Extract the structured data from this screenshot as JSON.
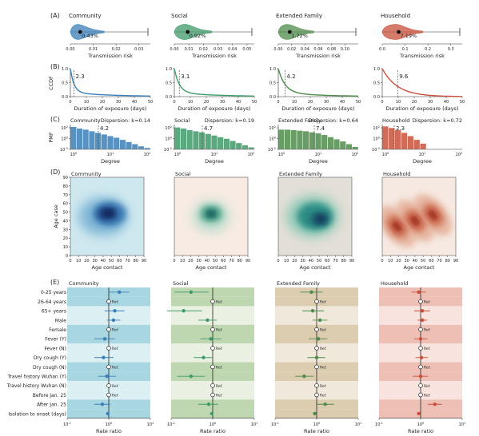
{
  "figure": {
    "panel_letters": [
      "(A)",
      "(B)",
      "(C)",
      "(D)",
      "(E)"
    ],
    "setting_titles": [
      "Community",
      "Social",
      "Extended Family",
      "Household"
    ],
    "colors": {
      "community": "#3a7fb8",
      "social": "#3f9a6a",
      "extended_family": "#4e8c4a",
      "household": "#c9503a"
    }
  },
  "chart_data": [
    {
      "type": "violin",
      "panel": "A",
      "xlabel": "Transmission risk",
      "settings": [
        {
          "name": "Community",
          "mean_label": "0.43%",
          "mean": 0.0043,
          "xlim": [
            0,
            0.035
          ],
          "ticks": [
            "0.00",
            "0.01",
            "0.02",
            "0.03"
          ],
          "tick_values": [
            0,
            0.01,
            0.02,
            0.03
          ]
        },
        {
          "name": "Social",
          "mean_label": "0.92%",
          "mean": 0.0092,
          "xlim": [
            0,
            0.055
          ],
          "ticks": [
            "0.00",
            "0.01",
            "0.02",
            "0.03",
            "0.04",
            "0.05"
          ],
          "tick_values": [
            0,
            0.01,
            0.02,
            0.03,
            0.04,
            0.05
          ]
        },
        {
          "name": "Extended Family",
          "mean_label": "1.72%",
          "mean": 0.0172,
          "xlim": [
            0,
            0.12
          ],
          "ticks": [
            "0.00",
            "0.02",
            "0.04",
            "0.06",
            "0.08",
            "0.10"
          ],
          "tick_values": [
            0,
            0.02,
            0.04,
            0.06,
            0.08,
            0.1
          ]
        },
        {
          "name": "Household",
          "mean_label": "7.19%",
          "mean": 0.0719,
          "xlim": [
            0,
            0.35
          ],
          "ticks": [
            "0.0",
            "0.1",
            "0.2",
            "0.3"
          ],
          "tick_values": [
            0,
            0.1,
            0.2,
            0.3
          ]
        }
      ]
    },
    {
      "type": "line",
      "panel": "B",
      "xlabel": "Duration of exposure (days)",
      "ylabel": "CCDF",
      "xlim": [
        0,
        50
      ],
      "ylim": [
        0,
        1.0
      ],
      "xticks": [
        0,
        10,
        20,
        30,
        40,
        50
      ],
      "yticks": [
        "0.0",
        "0.5",
        "1.0"
      ],
      "series": [
        {
          "setting": "Community",
          "mean_label": "2.3",
          "mean": 2.3
        },
        {
          "setting": "Social",
          "mean_label": "3.1",
          "mean": 3.1
        },
        {
          "setting": "Extended Family",
          "mean_label": "4.2",
          "mean": 4.2
        },
        {
          "setting": "Household",
          "mean_label": "9.6",
          "mean": 9.6
        }
      ]
    },
    {
      "type": "bar",
      "panel": "C",
      "xlabel": "Degree",
      "ylabel": "PMF",
      "xticks": [
        "10^0",
        "10^1",
        "10^2"
      ],
      "yticks": [
        "10^-2",
        "10^0",
        "10^2"
      ],
      "series": [
        {
          "setting": "Community",
          "mean_label": "4.2",
          "dispersion_label": "Dispersion: k=0.14",
          "heights": [
            2.2,
            1.9,
            1.7,
            1.4,
            1.1,
            0.8,
            0.5,
            0.2,
            -0.2,
            -0.6,
            -1.0,
            -1.4,
            -1.7
          ]
        },
        {
          "setting": "Social",
          "mean_label": "4.7",
          "dispersion_label": "Dispersion: k=0.19",
          "heights": [
            2.1,
            1.9,
            1.6,
            1.4,
            1.2,
            0.9,
            0.6,
            0.3,
            0.0,
            -0.4,
            -0.8,
            -1.2,
            -1.6
          ]
        },
        {
          "setting": "Extended Family",
          "mean_label": "7.4",
          "dispersion_label": "Dispersion: k=0.64",
          "heights": [
            1.7,
            1.7,
            1.6,
            1.5,
            1.4,
            1.2,
            1.0,
            0.7,
            0.3,
            -0.1,
            -0.5,
            -1.0,
            -1.5
          ]
        },
        {
          "setting": "Household",
          "mean_label": "2.3",
          "dispersion_label": "Dispersion: k=0.72",
          "heights": [
            2.3,
            2.0,
            1.6,
            1.1,
            0.5,
            -0.2,
            -0.9
          ]
        }
      ]
    },
    {
      "type": "heatmap",
      "panel": "D",
      "xlabel": "Age contact",
      "ylabel": "Age case",
      "xlim": [
        0,
        90
      ],
      "ylim": [
        0,
        90
      ],
      "xticks": [
        0,
        10,
        20,
        30,
        40,
        50,
        60,
        70,
        80,
        90
      ],
      "yticks": [
        0,
        10,
        20,
        30,
        40,
        50,
        60,
        70,
        80,
        90
      ],
      "settings": [
        "Community",
        "Social",
        "Extended Family",
        "Household"
      ]
    },
    {
      "type": "forest",
      "panel": "E",
      "xlabel": "Rate ratio",
      "xscale": "log",
      "xticks": [
        "10^-1",
        "10^0",
        "10^1"
      ],
      "reference_label": "Ref.",
      "rows": [
        "0-25 years",
        "26-64 years",
        "65+ years",
        "Male",
        "Female",
        "Fever (Y)",
        "Fever (N)",
        "Dry cough (Y)",
        "Dry cough (N)",
        "Travel history Wuhan (Y)",
        "Travel history Wuhan (N)",
        "Before Jan. 25",
        "After Jan. 25",
        "Isolation to onset (days)"
      ],
      "reference_rows": [
        1,
        4,
        6,
        8,
        10,
        11
      ],
      "settings": [
        {
          "name": "Community",
          "estimates": [
            {
              "row": 0,
              "rr": 1.8,
              "lo": 1.0,
              "hi": 3.1
            },
            {
              "row": 2,
              "rr": 1.4,
              "lo": 0.8,
              "hi": 2.4
            },
            {
              "row": 3,
              "rr": 1.3,
              "lo": 0.9,
              "hi": 1.9
            },
            {
              "row": 5,
              "rr": 0.8,
              "lo": 0.45,
              "hi": 1.4
            },
            {
              "row": 7,
              "rr": 0.75,
              "lo": 0.45,
              "hi": 1.3
            },
            {
              "row": 9,
              "rr": 0.9,
              "lo": 0.55,
              "hi": 1.5
            },
            {
              "row": 12,
              "rr": 0.7,
              "lo": 0.45,
              "hi": 1.1
            },
            {
              "row": 13,
              "rr": 0.95,
              "lo": 0.88,
              "hi": 1.03
            }
          ]
        },
        {
          "name": "Social",
          "estimates": [
            {
              "row": 0,
              "rr": 0.3,
              "lo": 0.12,
              "hi": 0.8
            },
            {
              "row": 2,
              "rr": 0.2,
              "lo": 0.08,
              "hi": 0.55
            },
            {
              "row": 3,
              "rr": 0.75,
              "lo": 0.45,
              "hi": 1.25
            },
            {
              "row": 5,
              "rr": 0.9,
              "lo": 0.5,
              "hi": 1.6
            },
            {
              "row": 7,
              "rr": 0.6,
              "lo": 0.35,
              "hi": 1.0
            },
            {
              "row": 9,
              "rr": 0.3,
              "lo": 0.14,
              "hi": 0.65
            },
            {
              "row": 12,
              "rr": 0.8,
              "lo": 0.45,
              "hi": 1.35
            },
            {
              "row": 13,
              "rr": 0.95,
              "lo": 0.88,
              "hi": 1.03
            }
          ]
        },
        {
          "name": "Extended Family",
          "estimates": [
            {
              "row": 0,
              "rr": 0.75,
              "lo": 0.4,
              "hi": 1.4
            },
            {
              "row": 2,
              "rr": 0.8,
              "lo": 0.45,
              "hi": 1.5
            },
            {
              "row": 3,
              "rr": 1.2,
              "lo": 0.8,
              "hi": 1.8
            },
            {
              "row": 5,
              "rr": 1.1,
              "lo": 0.65,
              "hi": 1.8
            },
            {
              "row": 7,
              "rr": 1.0,
              "lo": 0.6,
              "hi": 1.6
            },
            {
              "row": 9,
              "rr": 0.5,
              "lo": 0.3,
              "hi": 0.85
            },
            {
              "row": 12,
              "rr": 1.6,
              "lo": 1.0,
              "hi": 2.6
            },
            {
              "row": 13,
              "rr": 0.9,
              "lo": 0.83,
              "hi": 0.98
            }
          ]
        },
        {
          "name": "Household",
          "estimates": [
            {
              "row": 0,
              "rr": 0.9,
              "lo": 0.6,
              "hi": 1.35
            },
            {
              "row": 2,
              "rr": 1.1,
              "lo": 0.7,
              "hi": 1.7
            },
            {
              "row": 3,
              "rr": 1.1,
              "lo": 0.85,
              "hi": 1.45
            },
            {
              "row": 5,
              "rr": 1.0,
              "lo": 0.7,
              "hi": 1.45
            },
            {
              "row": 7,
              "rr": 1.05,
              "lo": 0.75,
              "hi": 1.5
            },
            {
              "row": 9,
              "rr": 1.0,
              "lo": 0.65,
              "hi": 1.5
            },
            {
              "row": 12,
              "rr": 2.2,
              "lo": 1.5,
              "hi": 3.2
            },
            {
              "row": 13,
              "rr": 0.9,
              "lo": 0.85,
              "hi": 0.96
            }
          ]
        }
      ]
    }
  ]
}
